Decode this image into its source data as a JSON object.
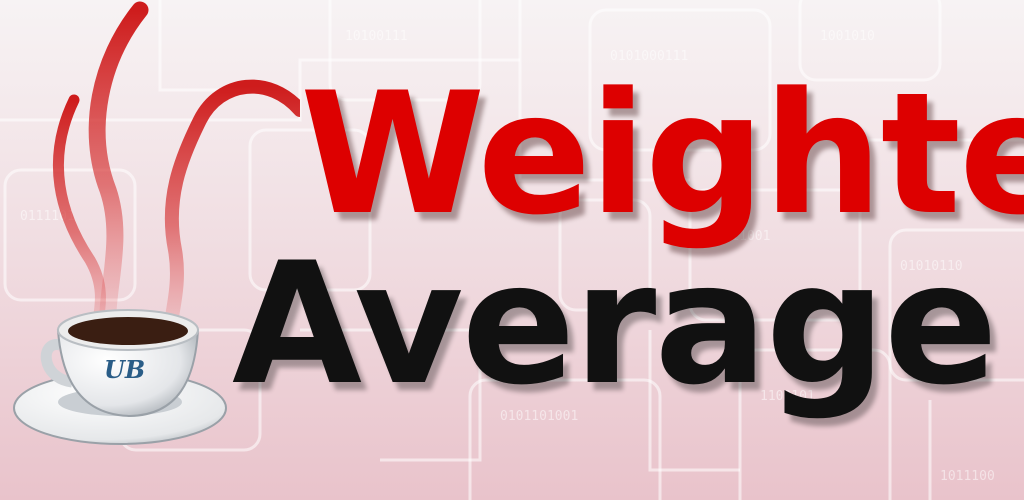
{
  "title": {
    "line1": "Weighted",
    "line2": "Average"
  },
  "logo": {
    "cup_badge_text": "UB"
  },
  "colors": {
    "title_line1": "#dd0000",
    "title_line2": "#111111",
    "steam": "#cc1111",
    "coffee": "#3a1e12",
    "cup_badge": "#2a5d87"
  },
  "icons": {
    "cup": "coffee-cup-icon",
    "steam": "steam-swirl-icon"
  }
}
